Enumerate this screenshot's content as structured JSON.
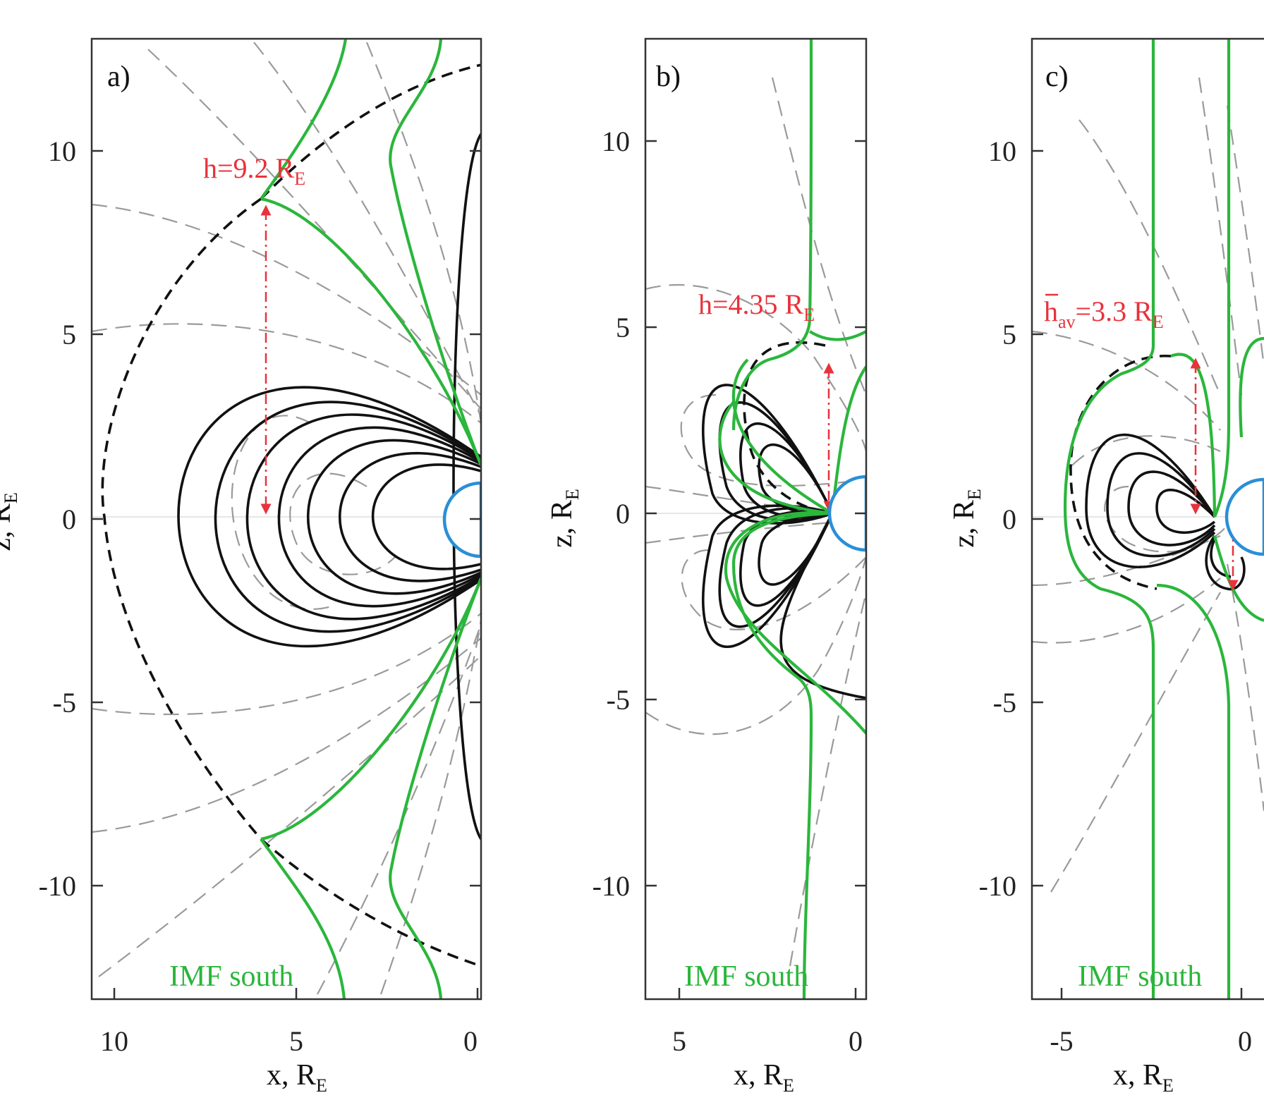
{
  "figure": {
    "panels": [
      {
        "id": "a",
        "label": "a)",
        "x_ticks": [
          "10",
          "5",
          "0"
        ],
        "y_ticks": [
          "10",
          "5",
          "0",
          "-5",
          "-10"
        ],
        "xlabel": "x, R",
        "ylabel": "z, R",
        "label_subscript": "E",
        "height_annotation": {
          "prefix": "h=9.2 R",
          "subscript": "E"
        },
        "imf_label": "IMF south"
      },
      {
        "id": "b",
        "label": "b)",
        "x_ticks": [
          "5",
          "0"
        ],
        "y_ticks": [
          "10",
          "5",
          "0",
          "-5",
          "-10"
        ],
        "xlabel": "x, R",
        "ylabel": "z, R",
        "label_subscript": "E",
        "height_annotation": {
          "prefix": "h=4.35 R",
          "subscript": "E"
        },
        "imf_label": "IMF south"
      },
      {
        "id": "c",
        "label": "c)",
        "x_ticks": [
          "-5",
          "0"
        ],
        "y_ticks": [
          "10",
          "5",
          "0",
          "-5",
          "-10"
        ],
        "xlabel": "x, R",
        "ylabel": "z, R",
        "label_subscript": "E",
        "height_annotation": {
          "prefix": "h",
          "prefix_subscript": "av",
          "value": "=3.3 R",
          "subscript": "E"
        },
        "imf_label": "IMF south"
      }
    ],
    "colors": {
      "closed_field_lines": "#111111",
      "open_field_lines": "#2bb63c",
      "equipotentials": "#9a9a9a",
      "height_marker": "#e8323c",
      "planet_outline": "#2a8fd6"
    }
  }
}
